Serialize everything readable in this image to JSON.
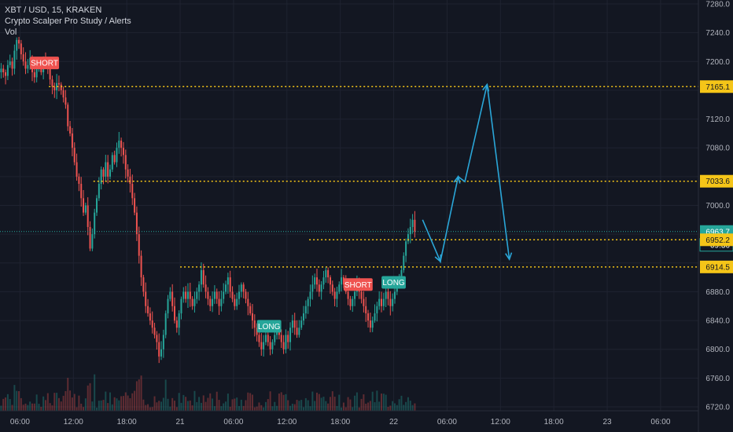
{
  "legend": {
    "symbol_line": "XBT / USD, 15, KRAKEN",
    "study_line": "Crypto Scalper Pro Study / Alerts",
    "vol_line": "Vol"
  },
  "colors": {
    "background": "#131722",
    "grid": "#1f2330",
    "up": "#26a69a",
    "down": "#ef5350",
    "level": "#f5c518",
    "current": "#26a69a",
    "arrow": "#2aa6d8",
    "short_tag": "#ef5350",
    "long_tag": "#26a69a"
  },
  "chart_data": {
    "type": "candlestick",
    "ylim": [
      6720,
      7280
    ],
    "y_ticks": [
      6720,
      6760,
      6800,
      6840,
      6880,
      6920,
      6960,
      7000,
      7040,
      7080,
      7120,
      7160,
      7200,
      7240,
      7280
    ],
    "y_tick_labels": [
      "6720.0",
      "6760.0",
      "6800.0",
      "6840.0",
      "6880.0",
      "",
      "",
      "7000.0",
      "",
      "7080.0",
      "7120.0",
      "",
      "7200.0",
      "7240.0",
      "7280.0"
    ],
    "x_ticks": [
      {
        "label": "06:00",
        "i": 9
      },
      {
        "label": "12:00",
        "i": 33
      },
      {
        "label": "18:00",
        "i": 57
      },
      {
        "label": "21",
        "i": 81
      },
      {
        "label": "06:00",
        "i": 105
      },
      {
        "label": "12:00",
        "i": 129
      },
      {
        "label": "18:00",
        "i": 153
      },
      {
        "label": "22",
        "i": 177
      },
      {
        "label": "06:00",
        "i": 201
      },
      {
        "label": "12:00",
        "i": 225
      },
      {
        "label": "18:00",
        "i": 249
      },
      {
        "label": "23",
        "i": 273
      },
      {
        "label": "06:00",
        "i": 297
      }
    ],
    "x_domain": [
      0,
      314
    ],
    "candles_close": [
      7190,
      7185,
      7180,
      7195,
      7200,
      7190,
      7215,
      7230,
      7225,
      7210,
      7200,
      7190,
      7195,
      7205,
      7185,
      7178,
      7190,
      7195,
      7185,
      7200,
      7198,
      7190,
      7175,
      7165,
      7160,
      7170,
      7168,
      7160,
      7150,
      7140,
      7110,
      7100,
      7080,
      7060,
      7040,
      7030,
      7010,
      6990,
      7000,
      6970,
      6940,
      6960,
      6990,
      7010,
      7030,
      7050,
      7040,
      7060,
      7040,
      7050,
      7070,
      7060,
      7080,
      7090,
      7080,
      7070,
      7050,
      7040,
      7030,
      7010,
      6990,
      6960,
      6930,
      6900,
      6880,
      6860,
      6850,
      6840,
      6830,
      6820,
      6810,
      6790,
      6800,
      6820,
      6850,
      6870,
      6880,
      6860,
      6840,
      6830,
      6850,
      6870,
      6880,
      6870,
      6880,
      6870,
      6860,
      6870,
      6880,
      6890,
      6910,
      6890,
      6880,
      6870,
      6860,
      6870,
      6880,
      6870,
      6860,
      6870,
      6880,
      6890,
      6900,
      6880,
      6870,
      6860,
      6870,
      6880,
      6890,
      6880,
      6870,
      6860,
      6850,
      6840,
      6830,
      6820,
      6810,
      6800,
      6810,
      6820,
      6810,
      6800,
      6810,
      6820,
      6830,
      6820,
      6810,
      6800,
      6820,
      6810,
      6830,
      6840,
      6830,
      6820,
      6830,
      6840,
      6850,
      6860,
      6870,
      6880,
      6890,
      6900,
      6890,
      6880,
      6890,
      6900,
      6910,
      6900,
      6890,
      6880,
      6870,
      6880,
      6890,
      6900,
      6890,
      6880,
      6870,
      6860,
      6870,
      6880,
      6890,
      6880,
      6870,
      6860,
      6850,
      6840,
      6830,
      6840,
      6850,
      6860,
      6870,
      6860,
      6870,
      6880,
      6870,
      6860,
      6870,
      6880,
      6890,
      6900,
      6910,
      6930,
      6950,
      6960,
      6970,
      6980,
      6963.7
    ],
    "price_labels": [
      {
        "value": 7165.1,
        "text": "7165.1",
        "kind": "level"
      },
      {
        "value": 7033.6,
        "text": "7033.6",
        "kind": "level"
      },
      {
        "value": 6963.7,
        "text": "6963.7",
        "kind": "current"
      },
      {
        "value": 6946,
        "text": "09:36",
        "kind": "countdown"
      },
      {
        "value": 6952.2,
        "text": "6952.2",
        "kind": "level"
      },
      {
        "value": 6914.5,
        "text": "6914.5",
        "kind": "level"
      }
    ],
    "level_lines": [
      {
        "value": 7165.1,
        "from_i": 22
      },
      {
        "value": 7033.6,
        "from_i": 42
      },
      {
        "value": 6963.7,
        "from_i": 0,
        "kind": "current"
      },
      {
        "value": 6952.2,
        "from_i": 139
      },
      {
        "value": 6914.5,
        "from_i": 81
      }
    ],
    "signals": [
      {
        "text": "SHORT",
        "kind": "short",
        "i": 20,
        "value": 7198
      },
      {
        "text": "LONG",
        "kind": "long",
        "i": 121,
        "value": 6832
      },
      {
        "text": "SHORT",
        "kind": "short",
        "i": 161,
        "value": 6890
      },
      {
        "text": "LONG",
        "kind": "long",
        "i": 177,
        "value": 6893
      }
    ],
    "projection": [
      {
        "i": 190,
        "value": 6980
      },
      {
        "i": 198,
        "value": 6922
      },
      {
        "i": 206,
        "value": 7040
      },
      {
        "i": 209,
        "value": 7033
      },
      {
        "i": 219,
        "value": 7168
      },
      {
        "i": 229,
        "value": 6925
      }
    ]
  }
}
